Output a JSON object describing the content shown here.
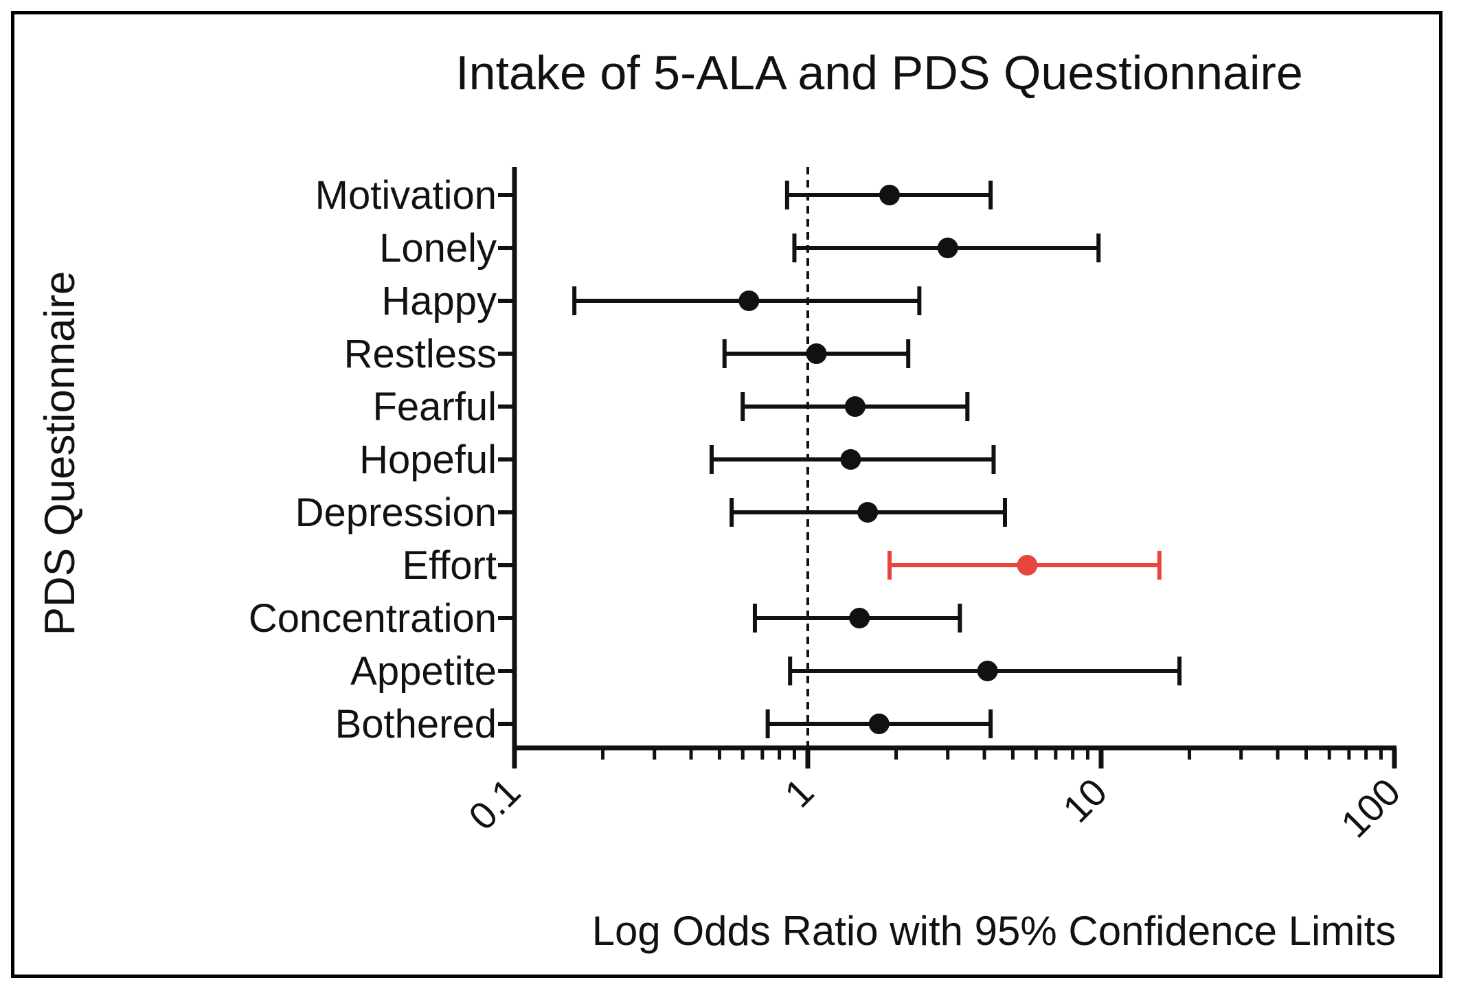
{
  "chart_data": {
    "type": "forest",
    "title": "Intake of 5-ALA and PDS Questionnaire",
    "xlabel": "Log Odds Ratio with 95% Confidence Limits",
    "ylabel": "PDS Questionnaire",
    "x_scale": "log",
    "xlim": [
      0.1,
      100
    ],
    "x_ticks": [
      0.1,
      1,
      10,
      100
    ],
    "x_tick_labels": [
      "0.1",
      "1",
      "10",
      "100"
    ],
    "reference_line": 1,
    "colors": {
      "default": "#111111",
      "highlight": "#e8453c"
    },
    "rows": [
      {
        "label": "Motivation",
        "or": 1.9,
        "low": 0.85,
        "high": 4.2,
        "highlight": false
      },
      {
        "label": "Lonely",
        "or": 3.0,
        "low": 0.9,
        "high": 9.8,
        "highlight": false
      },
      {
        "label": "Happy",
        "or": 0.63,
        "low": 0.16,
        "high": 2.4,
        "highlight": false
      },
      {
        "label": "Restless",
        "or": 1.07,
        "low": 0.52,
        "high": 2.2,
        "highlight": false
      },
      {
        "label": "Fearful",
        "or": 1.45,
        "low": 0.6,
        "high": 3.5,
        "highlight": false
      },
      {
        "label": "Hopeful",
        "or": 1.4,
        "low": 0.47,
        "high": 4.3,
        "highlight": false
      },
      {
        "label": "Depression",
        "or": 1.6,
        "low": 0.55,
        "high": 4.7,
        "highlight": false
      },
      {
        "label": "Effort",
        "or": 5.6,
        "low": 1.9,
        "high": 15.8,
        "highlight": true
      },
      {
        "label": "Concentration",
        "or": 1.5,
        "low": 0.66,
        "high": 3.3,
        "highlight": false
      },
      {
        "label": "Appetite",
        "or": 4.1,
        "low": 0.87,
        "high": 18.5,
        "highlight": false
      },
      {
        "label": "Bothered",
        "or": 1.75,
        "low": 0.73,
        "high": 4.2,
        "highlight": false
      }
    ]
  }
}
